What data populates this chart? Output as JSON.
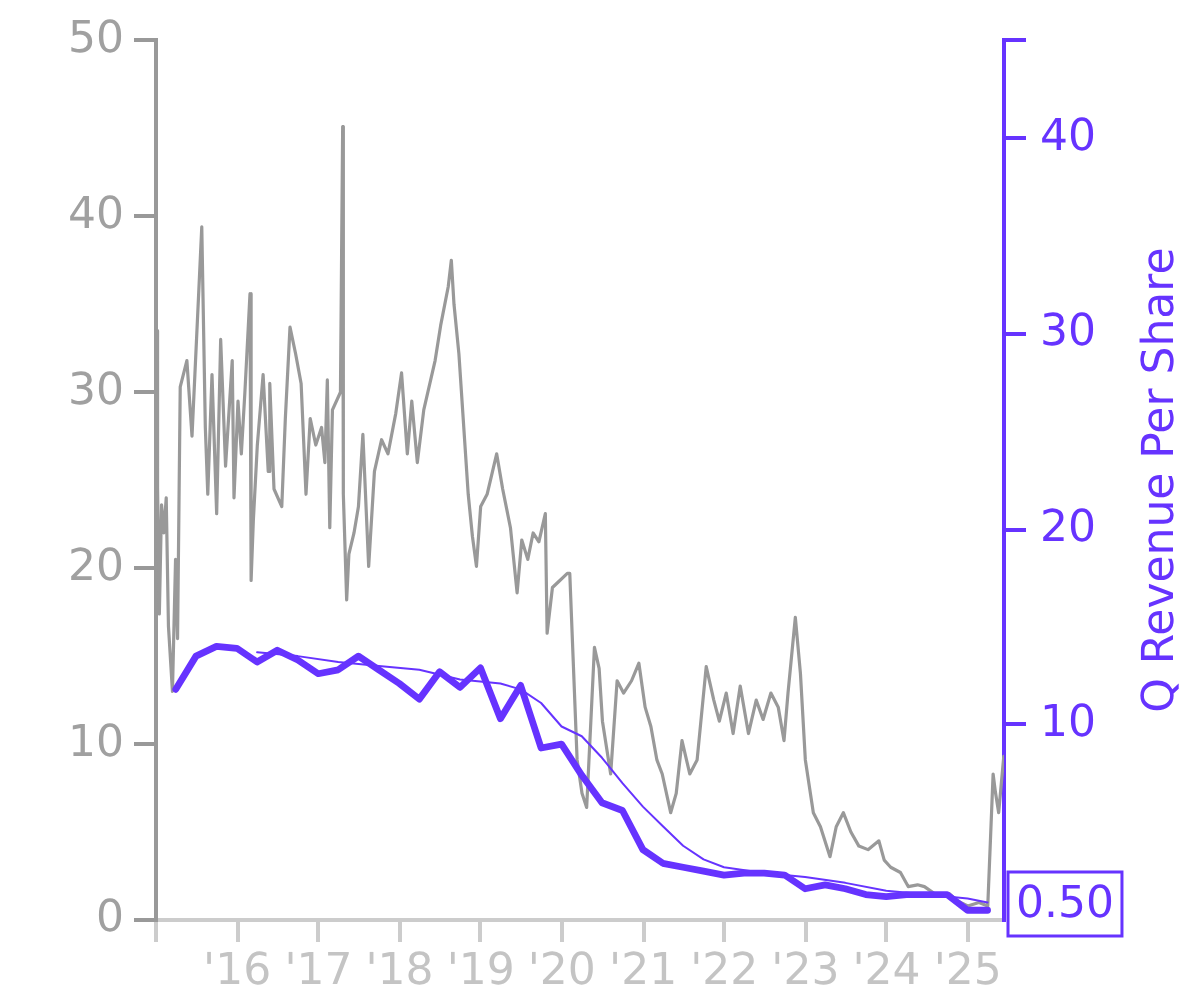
{
  "chart_data": {
    "type": "line",
    "y2label": "Q Revenue Per Share",
    "xlim": [
      "2015-01-01",
      "2025-06-13"
    ],
    "xticks": [
      {
        "value": "2015",
        "label": null
      },
      {
        "value": "2016",
        "label": "'16"
      },
      {
        "value": "2017",
        "label": "'17"
      },
      {
        "value": "2018",
        "label": "'18"
      },
      {
        "value": "2019",
        "label": "'19"
      },
      {
        "value": "2020",
        "label": "'20"
      },
      {
        "value": "2021",
        "label": "'21"
      },
      {
        "value": "2022",
        "label": "'22"
      },
      {
        "value": "2023",
        "label": "'23"
      },
      {
        "value": "2024",
        "label": "'24"
      },
      {
        "value": "2025",
        "label": "'25"
      }
    ],
    "ylim": [
      0,
      50
    ],
    "yticks": [
      0,
      10,
      20,
      30,
      40,
      50
    ],
    "y2lim": [
      0,
      45
    ],
    "y2ticks": [
      10,
      20,
      30,
      40,
      {
        "value": 45,
        "label": null
      }
    ],
    "series": [
      {
        "color": "#999999",
        "x": [
          "2015-01-02",
          "2015-01-08",
          "2015-01-16",
          "2015-01-26",
          "2015-02-05",
          "2015-02-16",
          "2015-02-26",
          "2015-03-16",
          "2015-03-30",
          "2015-04-08",
          "2015-04-20",
          "2015-05-20",
          "2015-06-12",
          "2015-06-25",
          "2015-07-26",
          "2015-08-11",
          "2015-08-22",
          "2015-09-10",
          "2015-10-01",
          "2015-10-19",
          "2015-11-10",
          "2015-12-10",
          "2015-12-18",
          "2016-01-05",
          "2016-01-20",
          "2016-02-05",
          "2016-02-28",
          "2016-03-04",
          "2016-03-14",
          "2016-04-01",
          "2016-04-27",
          "2016-05-20",
          "2016-05-27",
          "2016-06-15",
          "2016-07-20",
          "2016-08-05",
          "2016-08-26",
          "2016-09-20",
          "2016-10-15",
          "2016-11-06",
          "2016-11-25",
          "2016-12-20",
          "2017-01-15",
          "2017-01-30",
          "2017-02-10",
          "2017-02-21",
          "2017-03-05",
          "2017-04-10",
          "2017-04-20",
          "2017-04-23",
          "2017-05-08",
          "2017-05-18",
          "2017-06-10",
          "2017-06-30",
          "2017-07-20",
          "2017-08-15",
          "2017-09-10",
          "2017-10-12",
          "2017-11-10",
          "2017-12-15",
          "2018-01-10",
          "2018-02-05",
          "2018-02-25",
          "2018-03-22",
          "2018-04-20",
          "2018-06-10",
          "2018-07-05",
          "2018-08-08",
          "2018-08-22",
          "2018-09-03",
          "2018-09-25",
          "2018-11-06",
          "2018-11-25",
          "2018-12-13",
          "2019-01-01",
          "2019-01-30",
          "2019-03-14",
          "2019-04-10",
          "2019-05-15",
          "2019-06-14",
          "2019-07-05",
          "2019-08-01",
          "2019-08-25",
          "2019-09-20",
          "2019-10-19",
          "2019-10-27",
          "2019-11-20",
          "2019-12-15",
          "2020-01-26",
          "2020-02-06",
          "2020-03-10",
          "2020-04-01",
          "2020-04-22",
          "2020-05-27",
          "2020-06-17",
          "2020-07-02",
          "2020-08-08",
          "2020-09-06",
          "2020-10-05",
          "2020-11-10",
          "2020-12-13",
          "2021-01-10",
          "2021-02-05",
          "2021-03-04",
          "2021-03-28",
          "2021-05-05",
          "2021-05-30",
          "2021-06-25",
          "2021-07-30",
          "2021-09-01",
          "2021-10-12",
          "2021-11-15",
          "2021-12-10",
          "2022-01-10",
          "2022-02-10",
          "2022-03-14",
          "2022-04-20",
          "2022-05-25",
          "2022-06-25",
          "2022-07-30",
          "2022-09-01",
          "2022-09-27",
          "2022-10-15",
          "2022-11-17",
          "2022-12-10",
          "2023-01-01",
          "2023-02-06",
          "2023-03-10",
          "2023-04-22",
          "2023-05-20",
          "2023-06-21",
          "2023-07-25",
          "2023-08-30",
          "2023-10-10",
          "2023-11-28",
          "2023-12-22",
          "2024-01-20",
          "2024-03-04",
          "2024-04-08",
          "2024-05-20",
          "2024-06-20",
          "2024-08-15",
          "2024-10-10",
          "2024-11-13",
          "2025-01-01",
          "2025-02-20",
          "2025-04-01",
          "2025-04-25",
          "2025-05-05",
          "2025-05-20",
          "2025-06-12"
        ],
        "values": [
          33.5,
          24.6,
          17.4,
          23.6,
          22.0,
          24.0,
          16.7,
          13.0,
          20.5,
          16.0,
          30.3,
          31.8,
          27.5,
          31.0,
          39.4,
          28.0,
          24.2,
          31.0,
          23.1,
          33.0,
          25.8,
          31.8,
          24.0,
          29.5,
          26.5,
          30.0,
          35.6,
          19.3,
          22.7,
          27.0,
          31.0,
          25.5,
          30.5,
          24.5,
          23.5,
          28.5,
          33.7,
          32.2,
          30.5,
          24.2,
          28.5,
          27.0,
          28.0,
          26.0,
          30.7,
          22.3,
          29.0,
          30.0,
          45.1,
          24.2,
          18.2,
          20.8,
          22.0,
          23.5,
          27.6,
          20.1,
          25.5,
          27.3,
          26.5,
          28.8,
          31.1,
          26.5,
          29.5,
          26.0,
          29.0,
          31.8,
          33.8,
          36.0,
          37.5,
          35.0,
          32.2,
          24.2,
          21.8,
          20.1,
          23.5,
          24.2,
          26.5,
          24.5,
          22.3,
          18.6,
          21.6,
          20.5,
          22.0,
          21.5,
          23.1,
          16.3,
          18.9,
          19.2,
          19.7,
          19.7,
          9.1,
          7.2,
          6.4,
          15.5,
          14.3,
          11.3,
          8.3,
          13.6,
          12.9,
          13.6,
          14.6,
          12.1,
          11.0,
          9.1,
          8.3,
          6.1,
          7.2,
          10.2,
          8.3,
          9.1,
          14.4,
          12.5,
          11.3,
          12.9,
          10.6,
          13.3,
          10.6,
          12.5,
          11.4,
          12.9,
          12.1,
          10.2,
          12.9,
          17.2,
          14.0,
          9.1,
          6.1,
          5.3,
          3.6,
          5.3,
          6.1,
          5.0,
          4.2,
          4.0,
          4.5,
          3.4,
          3.0,
          2.7,
          1.9,
          2.0,
          1.9,
          1.4,
          1.5,
          1.1,
          0.8,
          1.0,
          0.8,
          8.3,
          7.3,
          6.1,
          9.3
        ]
      },
      {
        "color": "#6633ff",
        "axis": "y2",
        "x": [
          "2016-03-31",
          "2016-09-30",
          "2017-03-31",
          "2017-09-30",
          "2018-03-31",
          "2018-09-30",
          "2019-03-31",
          "2019-06-30",
          "2019-09-30",
          "2019-12-31",
          "2020-03-31",
          "2020-06-30",
          "2020-09-30",
          "2020-12-31",
          "2021-03-31",
          "2021-06-30",
          "2021-09-30",
          "2021-12-31",
          "2022-06-30",
          "2022-12-31",
          "2023-06-30",
          "2023-12-31",
          "2024-06-30",
          "2024-12-31",
          "2025-03-31"
        ],
        "values": [
          13.7,
          13.5,
          13.2,
          13.0,
          12.8,
          12.3,
          12.1,
          11.8,
          11.1,
          9.9,
          9.4,
          8.3,
          7.0,
          5.8,
          4.8,
          3.8,
          3.1,
          2.7,
          2.4,
          2.2,
          1.9,
          1.5,
          1.3,
          1.1,
          0.9
        ]
      },
      {
        "color": "#6633ff",
        "axis": "y2",
        "x": [
          "2015-03-31",
          "2015-06-30",
          "2015-09-30",
          "2015-12-31",
          "2016-03-31",
          "2016-06-30",
          "2016-09-30",
          "2016-12-31",
          "2017-03-31",
          "2017-06-30",
          "2017-09-30",
          "2017-12-31",
          "2018-03-31",
          "2018-06-30",
          "2018-09-30",
          "2018-12-31",
          "2019-03-31",
          "2019-06-30",
          "2019-09-30",
          "2019-12-31",
          "2020-03-31",
          "2020-06-30",
          "2020-09-30",
          "2020-12-31",
          "2021-03-31",
          "2021-06-30",
          "2021-09-30",
          "2021-12-31",
          "2022-03-31",
          "2022-06-30",
          "2022-09-30",
          "2022-12-31",
          "2023-03-31",
          "2023-06-30",
          "2023-09-30",
          "2023-12-31",
          "2024-03-31",
          "2024-06-30",
          "2024-09-30",
          "2024-12-31",
          "2025-03-31"
        ],
        "values": [
          11.8,
          13.5,
          14.0,
          13.9,
          13.2,
          13.8,
          13.3,
          12.6,
          12.8,
          13.5,
          12.8,
          12.1,
          11.3,
          12.7,
          11.9,
          12.9,
          10.3,
          12.0,
          8.8,
          9.0,
          7.4,
          6.0,
          5.6,
          3.6,
          2.9,
          2.7,
          2.5,
          2.3,
          2.4,
          2.4,
          2.3,
          1.6,
          1.8,
          1.6,
          1.3,
          1.2,
          1.3,
          1.3,
          1.3,
          0.5,
          0.5
        ],
        "value_labels": [
          null,
          null,
          null,
          null,
          null,
          null,
          null,
          null,
          null,
          null,
          null,
          null,
          null,
          null,
          null,
          null,
          null,
          null,
          null,
          null,
          null,
          null,
          null,
          null,
          null,
          null,
          null,
          null,
          null,
          null,
          null,
          null,
          null,
          null,
          null,
          null,
          null,
          null,
          null,
          null,
          "0.50"
        ]
      }
    ]
  }
}
